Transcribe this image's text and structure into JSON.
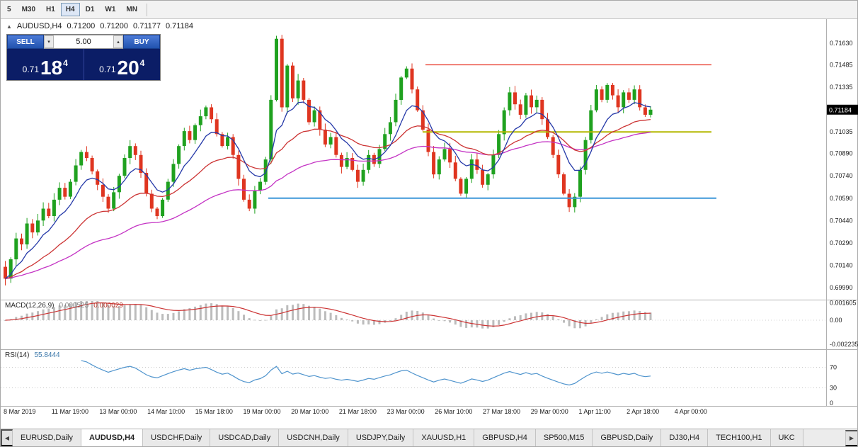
{
  "icons": {
    "chart_icon": "▲",
    "spinner_up": "▴",
    "spinner_down": "▾",
    "tab_scroll_left": "◀",
    "tab_scroll_right": "▶"
  },
  "toolbar": {
    "timeframes": [
      "5",
      "M30",
      "H1",
      "H4",
      "D1",
      "W1",
      "MN"
    ],
    "active": "H4"
  },
  "chart_header": {
    "symbol_period": "AUDUSD,H4",
    "open": "0.71200",
    "high": "0.71200",
    "low": "0.71177",
    "close": "0.71184"
  },
  "trade_widget": {
    "sell_label": "SELL",
    "buy_label": "BUY",
    "volume": "5.00",
    "sell_price": {
      "small": "0.71",
      "big": "18",
      "sup": "4"
    },
    "buy_price": {
      "small": "0.71",
      "big": "20",
      "sup": "4"
    }
  },
  "price_axis": {
    "labels": [
      {
        "text": "0.71630",
        "price": 0.7163
      },
      {
        "text": "0.71485",
        "price": 0.71485
      },
      {
        "text": "0.71335",
        "price": 0.71335
      },
      {
        "text": "0.71035",
        "price": 0.71035
      },
      {
        "text": "0.70890",
        "price": 0.7089
      },
      {
        "text": "0.70740",
        "price": 0.7074
      },
      {
        "text": "0.70590",
        "price": 0.7059
      },
      {
        "text": "0.70440",
        "price": 0.7044
      },
      {
        "text": "0.70290",
        "price": 0.7029
      },
      {
        "text": "0.70140",
        "price": 0.7014
      },
      {
        "text": "0.69990",
        "price": 0.6999
      }
    ],
    "current": {
      "text": "0.71184",
      "price": 0.71184
    }
  },
  "macd": {
    "label": "MACD(12,26,9)",
    "values": [
      "0.000525",
      "0.000029"
    ],
    "axis": [
      {
        "text": "0.001605",
        "value": 0.001605
      },
      {
        "text": "0.00",
        "value": 0
      },
      {
        "text": "-0.002235",
        "value": -0.002235
      }
    ]
  },
  "rsi": {
    "label": "RSI(14)",
    "value": "55.8444",
    "axis": [
      {
        "text": "70",
        "value": 70
      },
      {
        "text": "30",
        "value": 30
      },
      {
        "text": "0",
        "value": 0
      }
    ],
    "levels": [
      70,
      30
    ]
  },
  "time_axis": [
    "8 Mar 2019",
    "11 Mar 19:00",
    "13 Mar 00:00",
    "14 Mar 10:00",
    "15 Mar 18:00",
    "19 Mar 00:00",
    "20 Mar 10:00",
    "21 Mar 18:00",
    "23 Mar 00:00",
    "26 Mar 10:00",
    "27 Mar 18:00",
    "29 Mar 00:00",
    "1 Apr 11:00",
    "2 Apr 18:00",
    "4 Apr 00:00"
  ],
  "tabs": {
    "items": [
      "EURUSD,Daily",
      "AUDUSD,H4",
      "USDCHF,Daily",
      "USDCAD,Daily",
      "USDCNH,Daily",
      "USDJPY,Daily",
      "XAUUSD,H1",
      "GBPUSD,H4",
      "SP500,M15",
      "GBPUSD,Daily",
      "DJ30,H4",
      "TECH100,H1",
      "UKC"
    ],
    "active": "AUDUSD,H4"
  },
  "chart_data": {
    "type": "candlestick",
    "symbol": "AUDUSD",
    "period": "H4",
    "closes_e5": [
      70050,
      70180,
      70320,
      70280,
      70420,
      70360,
      70440,
      70520,
      70470,
      70580,
      70660,
      70600,
      70700,
      70810,
      70900,
      70860,
      70770,
      70680,
      70600,
      70520,
      70630,
      70740,
      70860,
      70940,
      70880,
      70760,
      70620,
      70520,
      70470,
      70580,
      70700,
      70820,
      70940,
      71040,
      70980,
      71080,
      71140,
      71200,
      71120,
      71020,
      70940,
      71000,
      70880,
      70720,
      70580,
      70520,
      70640,
      70700,
      70850,
      71250,
      71660,
      71200,
      71480,
      71260,
      71380,
      71250,
      71100,
      71180,
      71050,
      70950,
      71000,
      70880,
      70800,
      70860,
      70780,
      70700,
      70780,
      70880,
      70820,
      70920,
      71020,
      71100,
      71250,
      71400,
      71460,
      71320,
      71180,
      71050,
      70900,
      70750,
      70850,
      70920,
      70830,
      70720,
      70620,
      70720,
      70850,
      70780,
      70680,
      70750,
      70880,
      71020,
      71180,
      71300,
      71220,
      71150,
      71280,
      71200,
      71250,
      71120,
      71000,
      70880,
      70750,
      70620,
      70530,
      70600,
      70780,
      70980,
      71180,
      71320,
      71250,
      71350,
      71280,
      71200,
      71300,
      71250,
      71320,
      71200,
      71150,
      71184
    ],
    "hlines": [
      {
        "name": "resistance-line",
        "price": 0.71485,
        "color": "#e8392a",
        "width": 1.3,
        "x1": 0.515,
        "x2": 0.861
      },
      {
        "name": "pivot-line",
        "price": 0.71035,
        "color": "#b4b800",
        "width": 2,
        "x1": 0.511,
        "x2": 0.861
      },
      {
        "name": "support-line",
        "price": 0.7059,
        "color": "#3f97d8",
        "width": 2,
        "x1": 0.324,
        "x2": 0.867
      }
    ],
    "colors": {
      "up": "#1fa11f",
      "down": "#df3520",
      "ma_fast": "#2438a8",
      "ma_mid": "#cc3333",
      "ma_slow": "#c433c4",
      "macd_hist": "#bcbcbc",
      "macd_signal": "#cc3333",
      "rsi": "#4f94cd"
    }
  }
}
